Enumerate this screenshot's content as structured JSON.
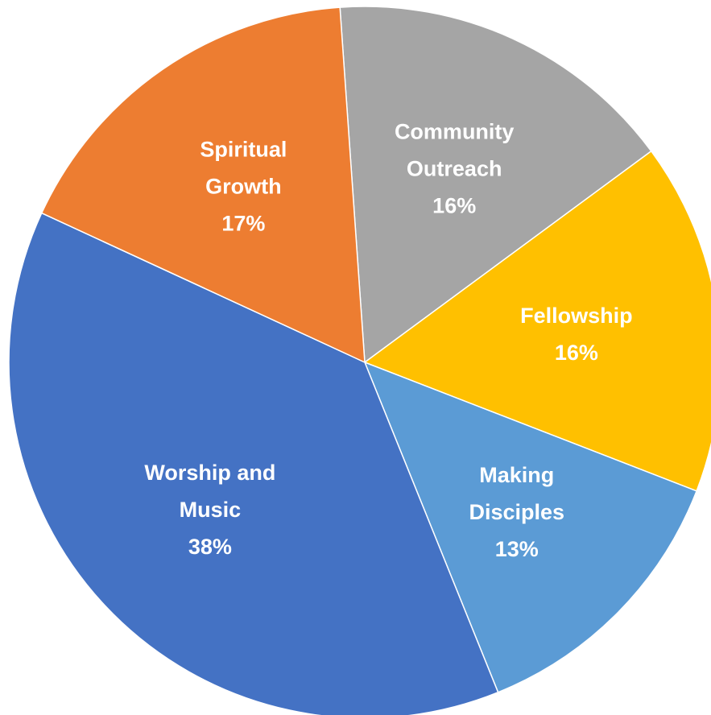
{
  "chart_data": {
    "type": "pie",
    "title": "",
    "start_angle_deg": -94,
    "slices": [
      {
        "name": "Community Outreach",
        "label_lines": [
          "Community",
          "Outreach"
        ],
        "percent_label": "16%",
        "value": 16,
        "color": "#A5A5A5"
      },
      {
        "name": "Fellowship",
        "label_lines": [
          "Fellowship"
        ],
        "percent_label": "16%",
        "value": 16,
        "color": "#FFC000"
      },
      {
        "name": "Making Disciples",
        "label_lines": [
          "Making",
          "Disciples"
        ],
        "percent_label": "13%",
        "value": 13,
        "color": "#5B9BD5"
      },
      {
        "name": "Worship and Music",
        "label_lines": [
          "Worship and",
          "Music"
        ],
        "percent_label": "38%",
        "value": 38,
        "color": "#4472C4"
      },
      {
        "name": "Spiritual Growth",
        "label_lines": [
          "Spiritual",
          "Growth"
        ],
        "percent_label": "17%",
        "value": 17,
        "color": "#ED7D31"
      }
    ]
  }
}
